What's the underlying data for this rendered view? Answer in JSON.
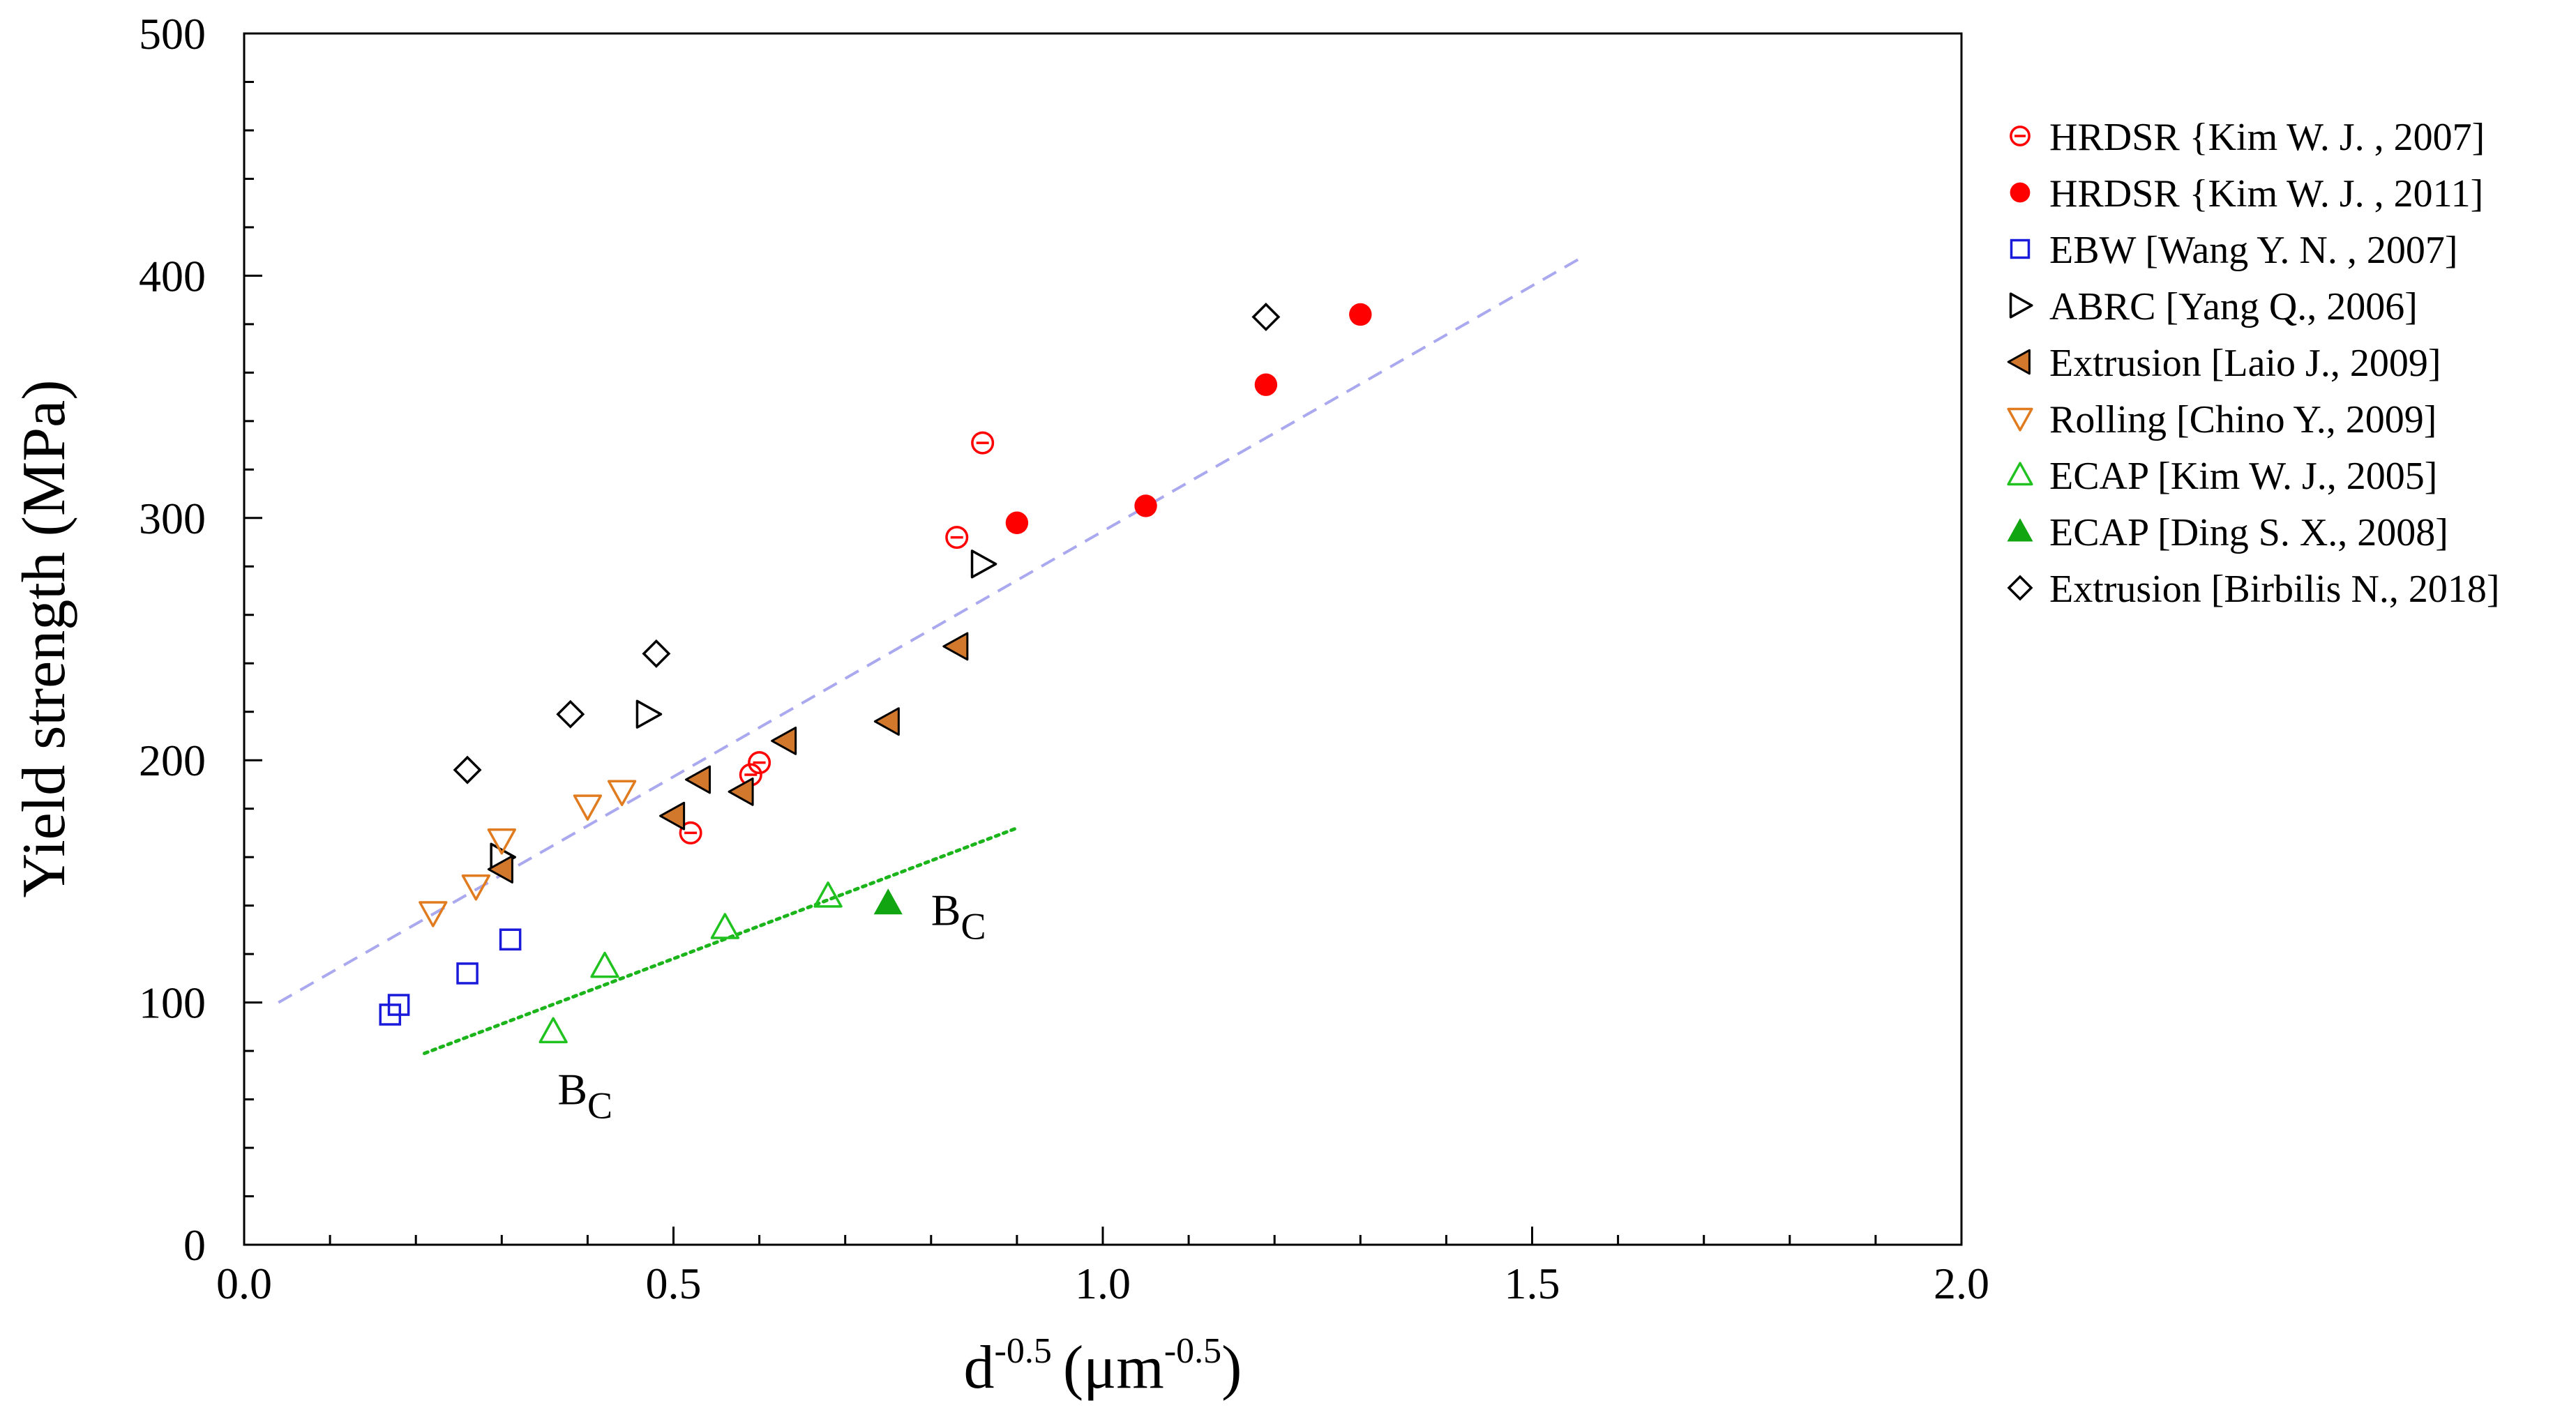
{
  "chart_data": {
    "type": "scatter",
    "xlabel": "d",
    "xlabel_sup": "-0.5",
    "xlabel_unit": "(μm",
    "xlabel_unit_sup": "-0.5",
    "xlabel_close": ")",
    "ylabel": "Yield strength (MPa)",
    "xlim": [
      0,
      2
    ],
    "ylim": [
      0,
      500
    ],
    "xticks": [
      0,
      0.5,
      1,
      1.5,
      2
    ],
    "xtick_labels": [
      "0.0",
      "0.5",
      "1.0",
      "1.5",
      "2.0"
    ],
    "yticks": [
      0,
      100,
      200,
      300,
      400,
      500
    ],
    "ytick_labels": [
      "0",
      "100",
      "200",
      "300",
      "400",
      "500"
    ],
    "grid": false,
    "legend_position": "right, outside plot",
    "series": [
      {
        "name": "HRDSR {Kim W. J. , 2007]",
        "marker": "circle-minus",
        "color": "#ff0000",
        "points": [
          [
            0.52,
            170
          ],
          [
            0.59,
            194
          ],
          [
            0.6,
            199
          ],
          [
            0.83,
            292
          ],
          [
            0.86,
            331
          ]
        ]
      },
      {
        "name": "HRDSR {Kim W. J. , 2011]",
        "marker": "circle-filled",
        "color": "#ff0000",
        "points": [
          [
            0.9,
            298
          ],
          [
            1.05,
            305
          ],
          [
            1.19,
            355
          ],
          [
            1.3,
            384
          ]
        ]
      },
      {
        "name": "EBW [Wang Y. N. , 2007]",
        "marker": "square-open",
        "color": "#1a1adb",
        "points": [
          [
            0.17,
            95
          ],
          [
            0.18,
            99
          ],
          [
            0.26,
            112
          ],
          [
            0.31,
            126
          ]
        ]
      },
      {
        "name": "ABRC [Yang Q., 2006]",
        "marker": "triangle-right-open",
        "color": "#000000",
        "points": [
          [
            0.3,
            160
          ],
          [
            0.47,
            219
          ],
          [
            0.86,
            281
          ]
        ]
      },
      {
        "name": "Extrusion [Laio J., 2009]",
        "marker": "triangle-left-filled",
        "color": "#d2782d",
        "points": [
          [
            0.3,
            155
          ],
          [
            0.5,
            177
          ],
          [
            0.53,
            192
          ],
          [
            0.58,
            187
          ],
          [
            0.63,
            208
          ],
          [
            0.75,
            216
          ],
          [
            0.83,
            247
          ]
        ]
      },
      {
        "name": "Rolling [Chino Y., 2009]",
        "marker": "triangle-down-open",
        "color": "#e07b1f",
        "points": [
          [
            0.22,
            137
          ],
          [
            0.27,
            148
          ],
          [
            0.3,
            167
          ],
          [
            0.4,
            181
          ],
          [
            0.44,
            187
          ]
        ]
      },
      {
        "name": "ECAP [Kim W. J., 2005]",
        "marker": "triangle-up-open",
        "color": "#1fc21f",
        "points": [
          [
            0.36,
            88
          ],
          [
            0.42,
            115
          ],
          [
            0.56,
            131
          ],
          [
            0.68,
            144
          ]
        ]
      },
      {
        "name": "ECAP [Ding S. X., 2008]",
        "marker": "triangle-up-filled",
        "color": "#11a611",
        "points": [
          [
            0.75,
            141
          ]
        ]
      },
      {
        "name": "Extrusion [Birbilis N., 2018]",
        "marker": "diamond-open",
        "color": "#000000",
        "points": [
          [
            0.26,
            196
          ],
          [
            0.38,
            219
          ],
          [
            0.48,
            244
          ],
          [
            1.19,
            383
          ]
        ]
      }
    ],
    "fit_lines": [
      {
        "name": "dashed-fit",
        "style": "dashed",
        "color": "#aaa8ef",
        "points": [
          [
            0.04,
            100
          ],
          [
            1.56,
            408
          ]
        ]
      },
      {
        "name": "dotted-fit",
        "style": "dotted",
        "color": "#1bb51b",
        "points": [
          [
            0.21,
            79
          ],
          [
            0.9,
            172
          ]
        ]
      }
    ],
    "annotations": [
      {
        "text": "B",
        "sub": "C",
        "x": 0.365,
        "y": 58
      },
      {
        "text": "B",
        "sub": "C",
        "x": 0.8,
        "y": 132
      }
    ]
  }
}
